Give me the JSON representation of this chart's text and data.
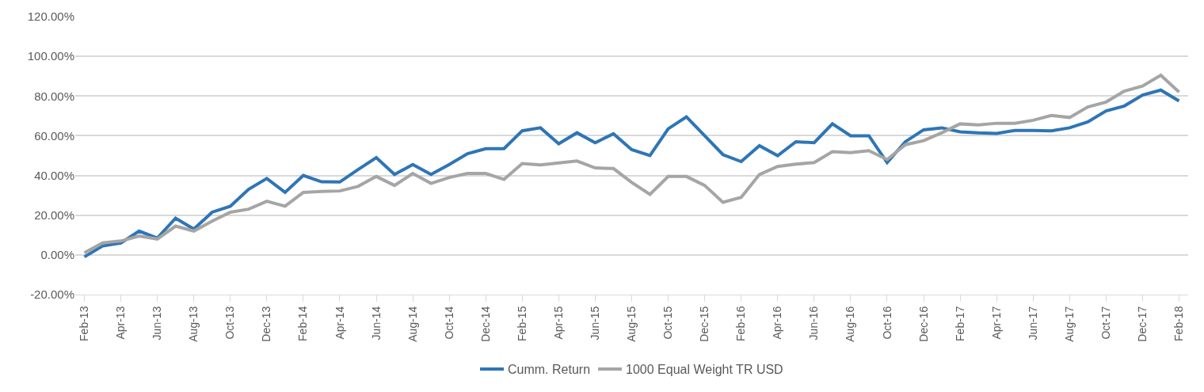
{
  "chart_data": {
    "type": "line",
    "categories": [
      "Feb-13",
      null,
      "Apr-13",
      null,
      "Jun-13",
      null,
      "Aug-13",
      null,
      "Oct-13",
      null,
      "Dec-13",
      null,
      "Feb-14",
      null,
      "Apr-14",
      null,
      "Jun-14",
      null,
      "Aug-14",
      null,
      "Oct-14",
      null,
      "Dec-14",
      null,
      "Feb-15",
      null,
      "Apr-15",
      null,
      "Jun-15",
      null,
      "Aug-15",
      null,
      "Oct-15",
      null,
      "Dec-15",
      null,
      "Feb-16",
      null,
      "Apr-16",
      null,
      "Jun-16",
      null,
      "Aug-16",
      null,
      "Oct-16",
      null,
      "Dec-16",
      null,
      "Feb-17",
      null,
      "Apr-17",
      null,
      "Jun-17",
      null,
      "Aug-17",
      null,
      "Oct-17",
      null,
      "Dec-17",
      null,
      "Feb-18"
    ],
    "series": [
      {
        "name": "Cumm. Return",
        "color": "#2e75b6",
        "values": [
          -1,
          4.5,
          6,
          12,
          8.5,
          18.5,
          13,
          21.5,
          24.5,
          33,
          38.5,
          31.5,
          40,
          36.8,
          36.7,
          43,
          49,
          40.5,
          45.5,
          40.5,
          45.5,
          51,
          53.5,
          53.5,
          62.5,
          64,
          56,
          61.5,
          56.5,
          61,
          53,
          50,
          63.5,
          69.5,
          60,
          50.5,
          47,
          55,
          50,
          57,
          56.5,
          66,
          60,
          60,
          46.5,
          57,
          63,
          64,
          62,
          61.5,
          61.2,
          62.7,
          62.7,
          62.5,
          64,
          67,
          72.5,
          75,
          80.5,
          83,
          77.5
        ]
      },
      {
        "name": "1000 Equal Weight TR USD",
        "color": "#a5a5a5",
        "values": [
          1,
          6,
          7,
          9.5,
          8,
          14.5,
          12,
          17,
          21.5,
          23,
          27,
          24.5,
          31.5,
          32,
          32.2,
          34.5,
          39.5,
          35,
          41,
          36,
          39,
          41,
          41,
          38,
          46,
          45.3,
          46.3,
          47.3,
          43.8,
          43.5,
          36.5,
          30.5,
          39.5,
          39.5,
          35,
          26.5,
          29,
          40.5,
          44.5,
          45.7,
          46.5,
          52,
          51.5,
          52.5,
          48,
          55.5,
          57.5,
          61.5,
          66,
          65.5,
          66.3,
          66.3,
          67.8,
          70.2,
          69.2,
          74.5,
          77,
          82.5,
          85,
          90.5,
          82
        ]
      }
    ],
    "ylim": [
      -20,
      120
    ],
    "yticks": [
      {
        "value": -20,
        "label": "-20.00%"
      },
      {
        "value": 0,
        "label": "0.00%"
      },
      {
        "value": 20,
        "label": "20.00%"
      },
      {
        "value": 40,
        "label": "40.00%"
      },
      {
        "value": 60,
        "label": "60.00%"
      },
      {
        "value": 80,
        "label": "80.00%"
      },
      {
        "value": 100,
        "label": "100.00%"
      },
      {
        "value": 120,
        "label": "120.00%"
      }
    ],
    "grid": "y",
    "legend": "bottom",
    "marker": "none",
    "line_style": "solid"
  }
}
